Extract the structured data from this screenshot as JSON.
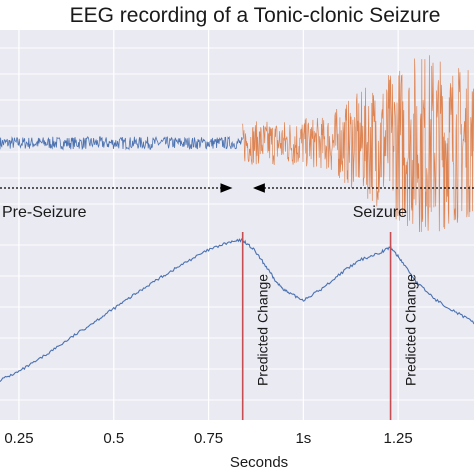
{
  "colors": {
    "panel_bg": "#eaeaf2",
    "grid": "#ffffff",
    "pre_seizure": "#4c72b0",
    "seizure": "#dd8452",
    "change_line": "#c44e52",
    "arrow": "#000000"
  },
  "chart_data": [
    {
      "type": "line",
      "title": "EEG recording of a Tonic-clonic Seizure",
      "grid": true,
      "xlim": [
        0.2,
        1.45
      ],
      "ylim": [
        -1,
        1
      ],
      "series": [
        {
          "name": "Pre-Seizure",
          "x_range": [
            0.2,
            0.84
          ],
          "amplitude": 0.06
        },
        {
          "name": "Seizure",
          "x_range": [
            0.84,
            1.45
          ],
          "amplitude_start": 0.2,
          "amplitude_peak": 0.92,
          "amplitude_end": 0.7
        }
      ],
      "annotations": [
        {
          "label": "Pre-Seizure",
          "arrow_from": 0.2,
          "arrow_to": 0.81
        },
        {
          "label": "Seizure",
          "arrow_from": 1.45,
          "arrow_to": 0.87
        }
      ]
    },
    {
      "type": "line",
      "xlabel": "Seconds",
      "grid": true,
      "xlim": [
        0.2,
        1.45
      ],
      "ylim": [
        0,
        1
      ],
      "xticks": [
        0.25,
        0.5,
        0.75,
        1.0,
        1.25
      ],
      "xtick_labels": [
        "0.25",
        "0.5",
        "0.75",
        "1s",
        "1.25"
      ],
      "series": [
        {
          "x": [
            0.2,
            0.25,
            0.3,
            0.35,
            0.4,
            0.45,
            0.5,
            0.55,
            0.6,
            0.65,
            0.7,
            0.75,
            0.8,
            0.84,
            0.87,
            0.9,
            0.93,
            0.96,
            1.0,
            1.05,
            1.1,
            1.15,
            1.2,
            1.23,
            1.26,
            1.3,
            1.35,
            1.4,
            1.45
          ],
          "y": [
            0.02,
            0.08,
            0.16,
            0.25,
            0.34,
            0.43,
            0.52,
            0.61,
            0.7,
            0.78,
            0.86,
            0.93,
            0.98,
            1.0,
            0.93,
            0.82,
            0.7,
            0.63,
            0.58,
            0.66,
            0.77,
            0.86,
            0.91,
            0.95,
            0.85,
            0.7,
            0.58,
            0.5,
            0.42
          ],
          "color": "#4c72b0"
        }
      ],
      "vlines": [
        {
          "x": 0.84,
          "label": "Predicted Change"
        },
        {
          "x": 1.23,
          "label": "Predicted Change"
        }
      ]
    }
  ]
}
